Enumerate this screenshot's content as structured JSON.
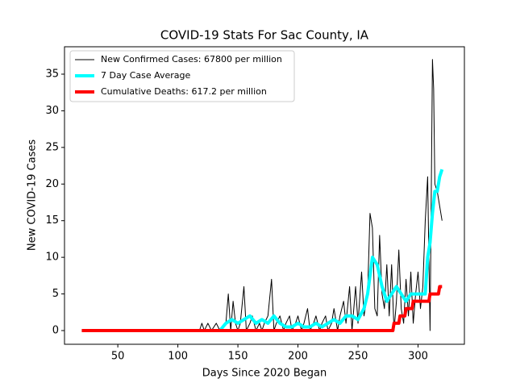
{
  "chart_data": {
    "type": "line",
    "title": "COVID-19 Stats For Sac County, IA",
    "x_label": "Days Since 2020 Began",
    "y_label": "New COVID-19 Cases",
    "xlim": [
      5.6,
      338.6
    ],
    "ylim": [
      -1.87,
      38.74
    ],
    "xticks": [
      50,
      100,
      150,
      200,
      250,
      300
    ],
    "yticks": [
      0,
      5,
      10,
      15,
      20,
      25,
      30,
      35
    ],
    "legend": "upper left",
    "series": [
      {
        "name": "New Confirmed Cases: 67800 per million",
        "color": "#000000",
        "width": 1,
        "x": [
          20,
          118,
          120,
          122,
          125,
          128,
          132,
          135,
          140,
          142,
          144,
          146,
          148,
          150,
          152,
          155,
          157,
          160,
          162,
          165,
          168,
          170,
          172,
          175,
          178,
          180,
          182,
          185,
          188,
          190,
          193,
          195,
          198,
          200,
          203,
          205,
          208,
          210,
          213,
          215,
          218,
          220,
          223,
          225,
          228,
          230,
          233,
          235,
          238,
          240,
          243,
          245,
          248,
          250,
          253,
          255,
          258,
          260,
          262,
          264,
          266,
          268,
          270,
          272,
          274,
          276,
          278,
          280,
          282,
          284,
          286,
          288,
          290,
          292,
          294,
          296,
          298,
          300,
          302,
          304,
          306,
          308,
          310,
          312,
          313,
          314,
          316,
          318,
          320
        ],
        "values": [
          0,
          0,
          1,
          0,
          1,
          0,
          1,
          0,
          1,
          5,
          0,
          4,
          1,
          0,
          1,
          6,
          0,
          1,
          2,
          0,
          1,
          0,
          1,
          2,
          7,
          0,
          1,
          2,
          0,
          1,
          2,
          0,
          1,
          2,
          0,
          1,
          3,
          0,
          1,
          2,
          0,
          1,
          2,
          0,
          1,
          3,
          0,
          2,
          4,
          1,
          6,
          0,
          6,
          1,
          8,
          2,
          5,
          16,
          14,
          3,
          2,
          13,
          5,
          3,
          9,
          2,
          9,
          0,
          4,
          11,
          3,
          1,
          7,
          2,
          8,
          1,
          5,
          8,
          3,
          6,
          15,
          21,
          0,
          37,
          33,
          20,
          19,
          17,
          15
        ]
      },
      {
        "name": "7 Day Case Average",
        "color": "#00ffff",
        "width": 4,
        "x": [
          20,
          135,
          140,
          145,
          150,
          155,
          160,
          165,
          170,
          175,
          180,
          185,
          190,
          195,
          200,
          205,
          210,
          215,
          220,
          225,
          230,
          235,
          240,
          245,
          250,
          255,
          258,
          262,
          266,
          270,
          274,
          278,
          282,
          286,
          290,
          294,
          298,
          302,
          306,
          308,
          310,
          312,
          314,
          316,
          318,
          320
        ],
        "values": [
          0,
          0,
          1,
          1.5,
          1,
          1.5,
          2,
          1,
          1.5,
          1,
          2,
          1,
          0.5,
          0.5,
          1,
          0.5,
          0.5,
          1,
          0.5,
          1,
          1.5,
          1,
          2,
          2,
          1.5,
          3,
          5,
          10,
          9,
          6,
          4,
          5,
          6,
          5,
          4,
          5,
          5,
          5,
          5,
          10,
          12,
          16,
          19,
          19,
          21,
          22
        ]
      },
      {
        "name": "Cumulative Deaths: 617.2 per million",
        "color": "#ff0000",
        "width": 4,
        "x": [
          20,
          279,
          280,
          284,
          285,
          289,
          290,
          295,
          296,
          300,
          301,
          309,
          310,
          317,
          318,
          320
        ],
        "values": [
          0,
          0,
          1,
          1,
          2,
          2,
          3,
          3,
          4,
          4,
          4,
          4,
          5,
          5,
          6,
          6
        ]
      }
    ]
  }
}
